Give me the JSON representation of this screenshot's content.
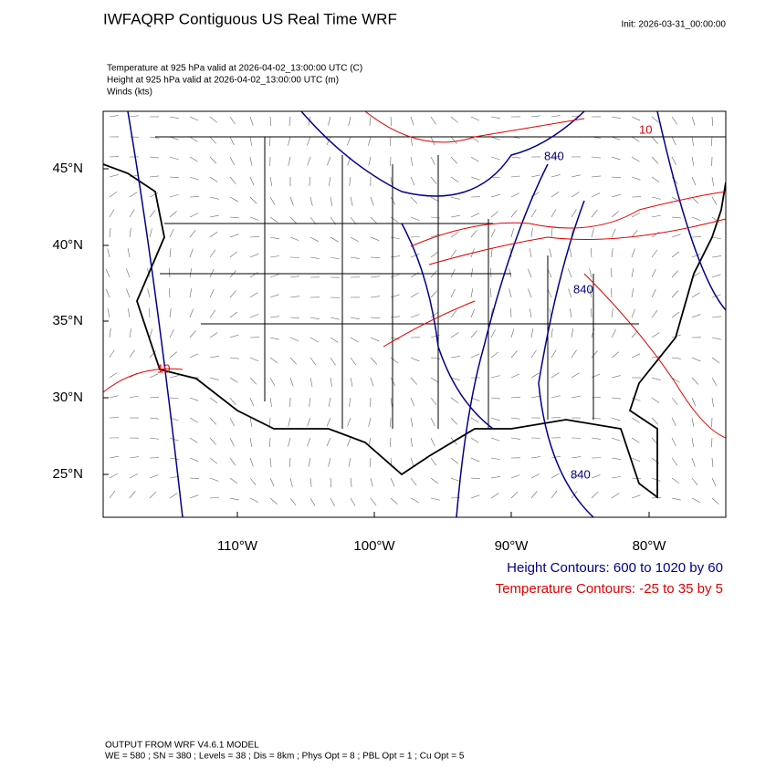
{
  "header": {
    "title": "IWFAQRP Contiguous US Real Time WRF",
    "init": "Init: 2026-03-31_00:00:00"
  },
  "fields": [
    "Temperature at 925 hPa valid at 2026-04-02_13:00:00 UTC   (C)",
    "Height at 925 hPa valid at 2026-04-02_13:00:00 UTC   (m)",
    "Winds   (kts)"
  ],
  "map": {
    "lat_labels": [
      "45°N",
      "40°N",
      "35°N",
      "30°N",
      "25°N"
    ],
    "lon_labels": [
      "110°W",
      "100°W",
      "90°W",
      "80°W"
    ],
    "height_contour_labels": [
      "840",
      "840",
      "840"
    ],
    "temperature_contour_labels": [
      "10",
      "10"
    ]
  },
  "legend": {
    "height": "Height Contours: 600 to 1020 by 60",
    "temperature": "Temperature Contours: -25 to 35 by 5"
  },
  "footer": [
    "OUTPUT FROM WRF V4.6.1 MODEL",
    "WE = 580 ; SN = 380 ; Levels = 38 ; Dis = 8km ; Phys Opt = 8 ; PBL Opt = 1 ; Cu Opt = 5"
  ]
}
